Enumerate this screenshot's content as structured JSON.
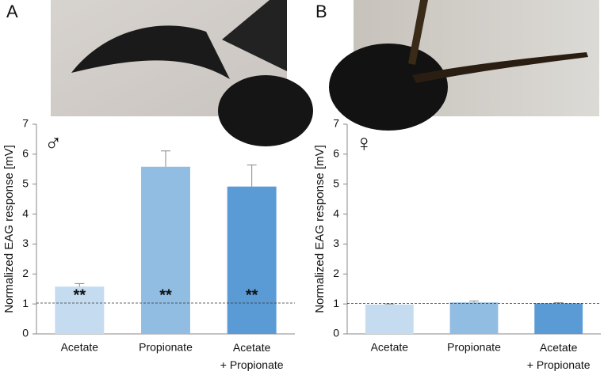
{
  "chart_data": [
    {
      "type": "bar",
      "panel_label": "A",
      "symbol": "♂",
      "ylabel": "Normalized EAG response [mV]",
      "categories": [
        "Acetate",
        "Propionate",
        "Acetate\n+ Propionate"
      ],
      "values": [
        1.58,
        5.58,
        4.92
      ],
      "errors": [
        0.1,
        0.53,
        0.72
      ],
      "colors": [
        "#c5dcf0",
        "#92bde3",
        "#5b9bd5"
      ],
      "annotations": [
        "**",
        "**",
        "**"
      ],
      "ref_line": 1.03,
      "ylim": [
        0,
        7
      ],
      "yticks": [
        0,
        1,
        2,
        3,
        4,
        5,
        6,
        7
      ]
    },
    {
      "type": "bar",
      "panel_label": "B",
      "symbol": "♀",
      "ylabel": "Normalized EAG response [mV]",
      "categories": [
        "Acetate",
        "Propionate",
        "Acetate\n+ Propionate"
      ],
      "values": [
        0.98,
        1.05,
        1.02
      ],
      "errors": [
        0.02,
        0.05,
        0.02
      ],
      "colors": [
        "#c5dcf0",
        "#92bde3",
        "#5b9bd5"
      ],
      "ref_line": 1.02,
      "ylim": [
        0,
        7
      ],
      "yticks": [
        0,
        1,
        2,
        3,
        4,
        5,
        6,
        7
      ]
    }
  ]
}
